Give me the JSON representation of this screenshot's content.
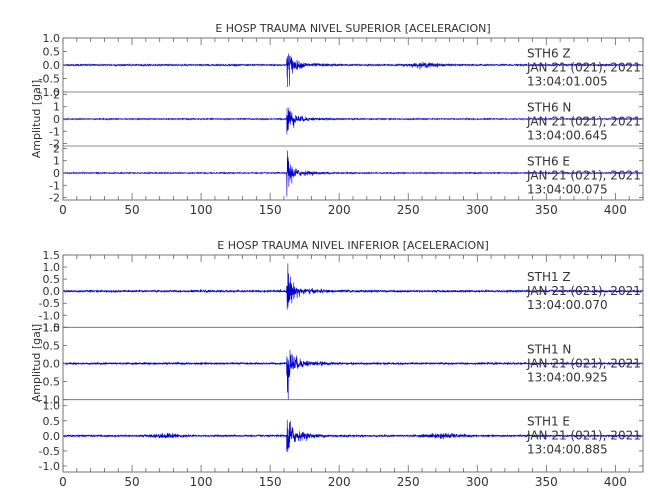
{
  "chart_data": [
    {
      "type": "line",
      "title": "E HOSP TRAUMA NIVEL SUPERIOR [ACELERACION]",
      "ylabel": "Amplitud [gal]",
      "xlim": [
        0,
        420
      ],
      "x_ticks": [
        "0",
        "50",
        "100",
        "150",
        "200",
        "250",
        "300",
        "350",
        "400"
      ],
      "line_color": "#0000cc",
      "grid": false,
      "traces": [
        {
          "station": "STH6",
          "component": "Z",
          "date": "JAN 21 (021), 2021",
          "time": "13:04:01.005",
          "ylim": [
            -1.0,
            1.0
          ],
          "y_ticks": [
            "1.0",
            "0.5",
            "0.0",
            "-0.5",
            "-1.0"
          ],
          "y_tick_values": [
            1.0,
            0.5,
            0.0,
            -0.5,
            -1.0
          ],
          "noise": 0.035,
          "peak": 0.95,
          "event_center": 163,
          "secondary": [
            [
              262,
              0.08
            ]
          ]
        },
        {
          "station": "STH6",
          "component": "N",
          "date": "JAN 21 (021), 2021",
          "time": "13:04:00.645",
          "ylim": [
            -2.2,
            2.2
          ],
          "y_ticks": [
            "2",
            "1",
            "0",
            "-1",
            "-2"
          ],
          "y_tick_values": [
            2,
            1,
            0,
            -1,
            -2
          ],
          "noise": 0.05,
          "peak": 2.0,
          "event_center": 163,
          "secondary": []
        },
        {
          "station": "STH6",
          "component": "E",
          "date": "JAN 21 (021), 2021",
          "time": "13:04:00.075",
          "ylim": [
            -2.2,
            2.2
          ],
          "y_ticks": [
            "2",
            "1",
            "0",
            "-1",
            "-2"
          ],
          "y_tick_values": [
            2,
            1,
            0,
            -1,
            -2
          ],
          "noise": 0.05,
          "peak": 2.0,
          "event_center": 163,
          "secondary": []
        }
      ]
    },
    {
      "type": "line",
      "title": "E HOSP TRAUMA NIVEL INFERIOR [ACELERACION]",
      "ylabel": "Amplitud [gal]",
      "xlim": [
        0,
        420
      ],
      "x_ticks": [
        "0",
        "50",
        "100",
        "150",
        "200",
        "250",
        "300",
        "350",
        "400"
      ],
      "line_color": "#0000cc",
      "grid": false,
      "traces": [
        {
          "station": "STH1",
          "component": "Z",
          "date": "JAN 21 (021), 2021",
          "time": "13:04:00.070",
          "ylim": [
            -1.5,
            1.5
          ],
          "y_ticks": [
            "1.5",
            "1.0",
            "0.5",
            "0.0",
            "-0.5",
            "-1.0",
            "-1.5"
          ],
          "y_tick_values": [
            1.5,
            1.0,
            0.5,
            0.0,
            -0.5,
            -1.0,
            -1.5
          ],
          "noise": 0.05,
          "peak": 1.2,
          "event_center": 163,
          "secondary": []
        },
        {
          "station": "STH1",
          "component": "N",
          "date": "JAN 21 (021), 2021",
          "time": "13:04:00.925",
          "ylim": [
            -1.0,
            1.0
          ],
          "y_ticks": [
            "1.0",
            "0.5",
            "0.0",
            "-0.5",
            "-1.0"
          ],
          "y_tick_values": [
            1.0,
            0.5,
            0.0,
            -0.5,
            -1.0
          ],
          "noise": 0.03,
          "peak": 0.95,
          "event_center": 163,
          "secondary": []
        },
        {
          "station": "STH1",
          "component": "E",
          "date": "JAN 21 (021), 2021",
          "time": "13:04:00.885",
          "ylim": [
            -1.2,
            1.2
          ],
          "y_ticks": [
            "1.0",
            "0.5",
            "0.0",
            "-0.5",
            "-1.0"
          ],
          "y_tick_values": [
            1.0,
            0.5,
            0.0,
            -0.5,
            -1.0
          ],
          "noise": 0.035,
          "peak": 1.1,
          "event_center": 163,
          "secondary": [
            [
              75,
              0.07
            ],
            [
              275,
              0.08
            ]
          ]
        }
      ]
    }
  ]
}
